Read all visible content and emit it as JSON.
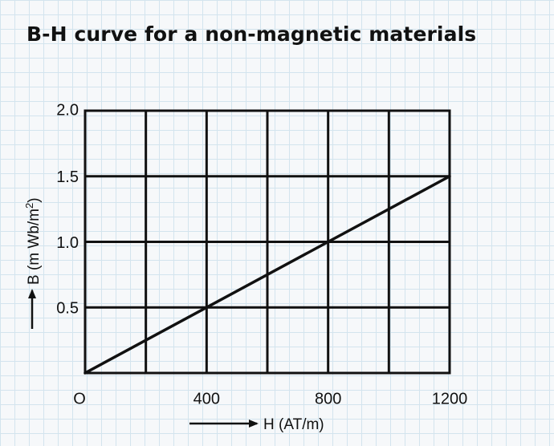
{
  "chart_data": {
    "type": "line",
    "title": "B-H curve for a non-magnetic materials",
    "xlabel": "H (AT/m)",
    "ylabel": "B (m Wb/m²)",
    "origin_label": "O",
    "xlim": [
      0,
      1200
    ],
    "ylim": [
      0,
      2.0
    ],
    "x_ticks": [
      400,
      800,
      1200
    ],
    "x_tick_labels": [
      "400",
      "800",
      "1200"
    ],
    "x_gridlines": [
      200,
      400,
      600,
      800,
      1000,
      1200
    ],
    "y_ticks": [
      0.5,
      1.0,
      1.5,
      2.0
    ],
    "y_tick_labels": [
      "0.5",
      "1.0",
      "1.5",
      "2.0"
    ],
    "grid": true,
    "series": [
      {
        "x": [
          0,
          1200
        ],
        "y": [
          0,
          1.5
        ],
        "color": "#111111"
      }
    ]
  }
}
